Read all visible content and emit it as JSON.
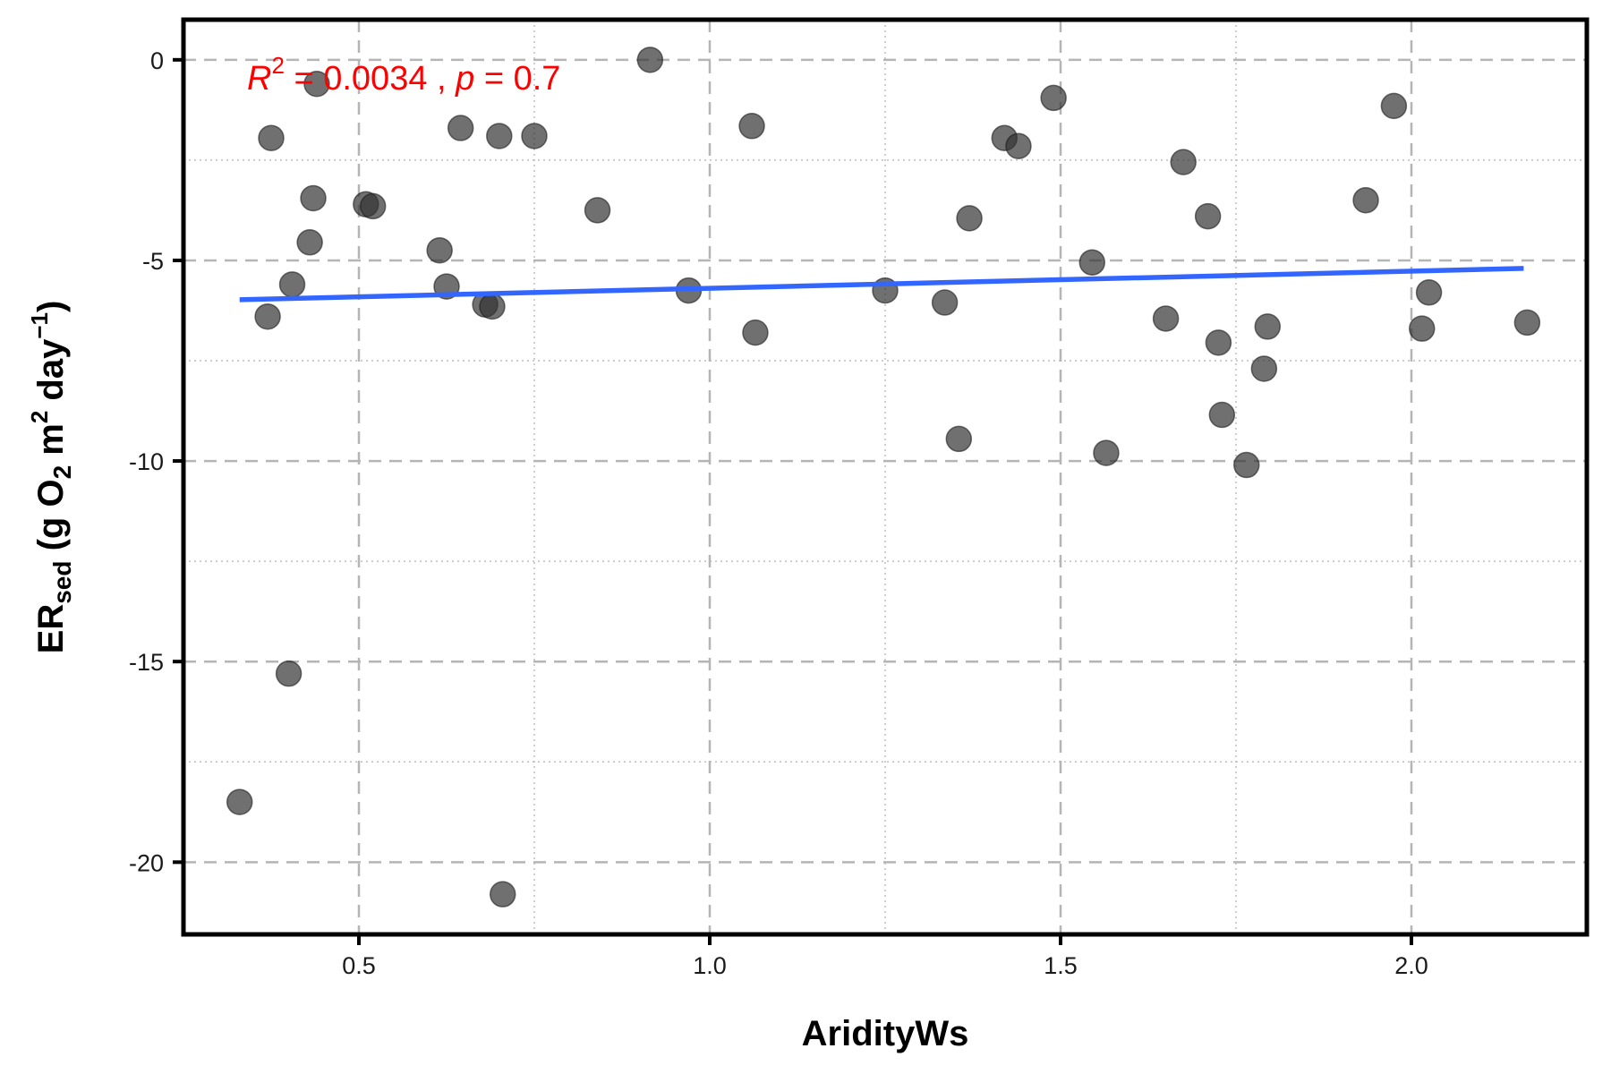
{
  "chart_data": {
    "type": "scatter",
    "xlabel": "AridityWs",
    "ylabel": {
      "main": "ER",
      "sub": "sed",
      "unit_open": " (g O",
      "o2_sub": "2",
      "unit_mid": " m",
      "m_sup": "2",
      "unit_day": " day",
      "day_sup": "−1",
      "unit_close": ")"
    },
    "xlim": [
      0.25,
      2.25
    ],
    "ylim": [
      -21.8,
      1.0
    ],
    "x_ticks": [
      0.5,
      1.0,
      1.5,
      2.0
    ],
    "x_tick_labels": [
      "0.5",
      "1.0",
      "1.5",
      "2.0"
    ],
    "y_ticks": [
      0,
      -5,
      -10,
      -15,
      -20
    ],
    "y_tick_labels": [
      "0",
      "-5",
      "-10",
      "-15",
      "-20"
    ],
    "grid": {
      "major": "dashed",
      "minor": "dotted"
    },
    "annotation": {
      "r_label": "R",
      "r_sup": "2",
      "r_value": " = 0.0034 , ",
      "p_label": "p",
      "p_value": " = 0.7",
      "color": "#ff0000"
    },
    "point_color": "#333333",
    "trend_color": "#3366ff",
    "trend_line": {
      "x": [
        0.33,
        2.16
      ],
      "y": [
        -5.98,
        -5.2
      ]
    },
    "points": [
      {
        "x": 0.33,
        "y": -18.5
      },
      {
        "x": 0.37,
        "y": -6.4
      },
      {
        "x": 0.375,
        "y": -1.95
      },
      {
        "x": 0.4,
        "y": -15.3
      },
      {
        "x": 0.405,
        "y": -5.6
      },
      {
        "x": 0.43,
        "y": -4.55
      },
      {
        "x": 0.435,
        "y": -3.45
      },
      {
        "x": 0.44,
        "y": -0.6
      },
      {
        "x": 0.51,
        "y": -3.6
      },
      {
        "x": 0.52,
        "y": -3.65
      },
      {
        "x": 0.615,
        "y": -4.75
      },
      {
        "x": 0.625,
        "y": -5.65
      },
      {
        "x": 0.645,
        "y": -1.7
      },
      {
        "x": 0.68,
        "y": -6.1
      },
      {
        "x": 0.69,
        "y": -6.15
      },
      {
        "x": 0.7,
        "y": -1.9
      },
      {
        "x": 0.705,
        "y": -20.8
      },
      {
        "x": 0.75,
        "y": -1.9
      },
      {
        "x": 0.84,
        "y": -3.75
      },
      {
        "x": 0.915,
        "y": 0.0
      },
      {
        "x": 0.97,
        "y": -5.75
      },
      {
        "x": 1.06,
        "y": -1.65
      },
      {
        "x": 1.065,
        "y": -6.8
      },
      {
        "x": 1.25,
        "y": -5.75
      },
      {
        "x": 1.335,
        "y": -6.05
      },
      {
        "x": 1.355,
        "y": -9.45
      },
      {
        "x": 1.37,
        "y": -3.95
      },
      {
        "x": 1.42,
        "y": -1.95
      },
      {
        "x": 1.44,
        "y": -2.15
      },
      {
        "x": 1.49,
        "y": -0.95
      },
      {
        "x": 1.545,
        "y": -5.05
      },
      {
        "x": 1.565,
        "y": -9.8
      },
      {
        "x": 1.65,
        "y": -6.45
      },
      {
        "x": 1.675,
        "y": -2.55
      },
      {
        "x": 1.71,
        "y": -3.9
      },
      {
        "x": 1.725,
        "y": -7.05
      },
      {
        "x": 1.73,
        "y": -8.85
      },
      {
        "x": 1.765,
        "y": -10.1
      },
      {
        "x": 1.79,
        "y": -7.7
      },
      {
        "x": 1.795,
        "y": -6.65
      },
      {
        "x": 1.935,
        "y": -3.5
      },
      {
        "x": 1.975,
        "y": -1.15
      },
      {
        "x": 2.015,
        "y": -6.7
      },
      {
        "x": 2.025,
        "y": -5.8
      },
      {
        "x": 2.165,
        "y": -6.55
      }
    ]
  }
}
